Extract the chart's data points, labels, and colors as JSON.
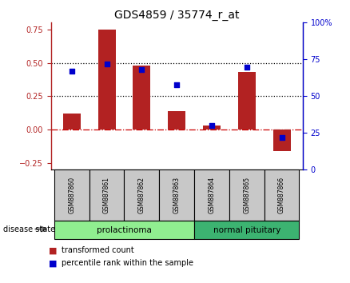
{
  "title": "GDS4859 / 35774_r_at",
  "samples": [
    "GSM887860",
    "GSM887861",
    "GSM887862",
    "GSM887863",
    "GSM887864",
    "GSM887865",
    "GSM887866"
  ],
  "transformed_count": [
    0.12,
    0.75,
    0.48,
    0.14,
    0.03,
    0.43,
    -0.16
  ],
  "percentile_rank": [
    67,
    72,
    68,
    58,
    30,
    70,
    22
  ],
  "disease_groups": [
    {
      "label": "prolactinoma",
      "start": 0,
      "end": 4,
      "color": "#90EE90"
    },
    {
      "label": "normal pituitary",
      "start": 4,
      "end": 7,
      "color": "#3CB371"
    }
  ],
  "ylim_left": [
    -0.3,
    0.8
  ],
  "ylim_right": [
    0,
    100
  ],
  "yticks_left": [
    -0.25,
    0.0,
    0.25,
    0.5,
    0.75
  ],
  "yticks_right": [
    0,
    25,
    50,
    75,
    100
  ],
  "hlines": [
    0.25,
    0.5
  ],
  "bar_color": "#B22222",
  "dot_color": "#0000CC",
  "zero_line_color": "#CC0000",
  "bar_width": 0.5,
  "disease_label": "disease state",
  "legend_bar": "transformed count",
  "legend_dot": "percentile rank within the sample"
}
